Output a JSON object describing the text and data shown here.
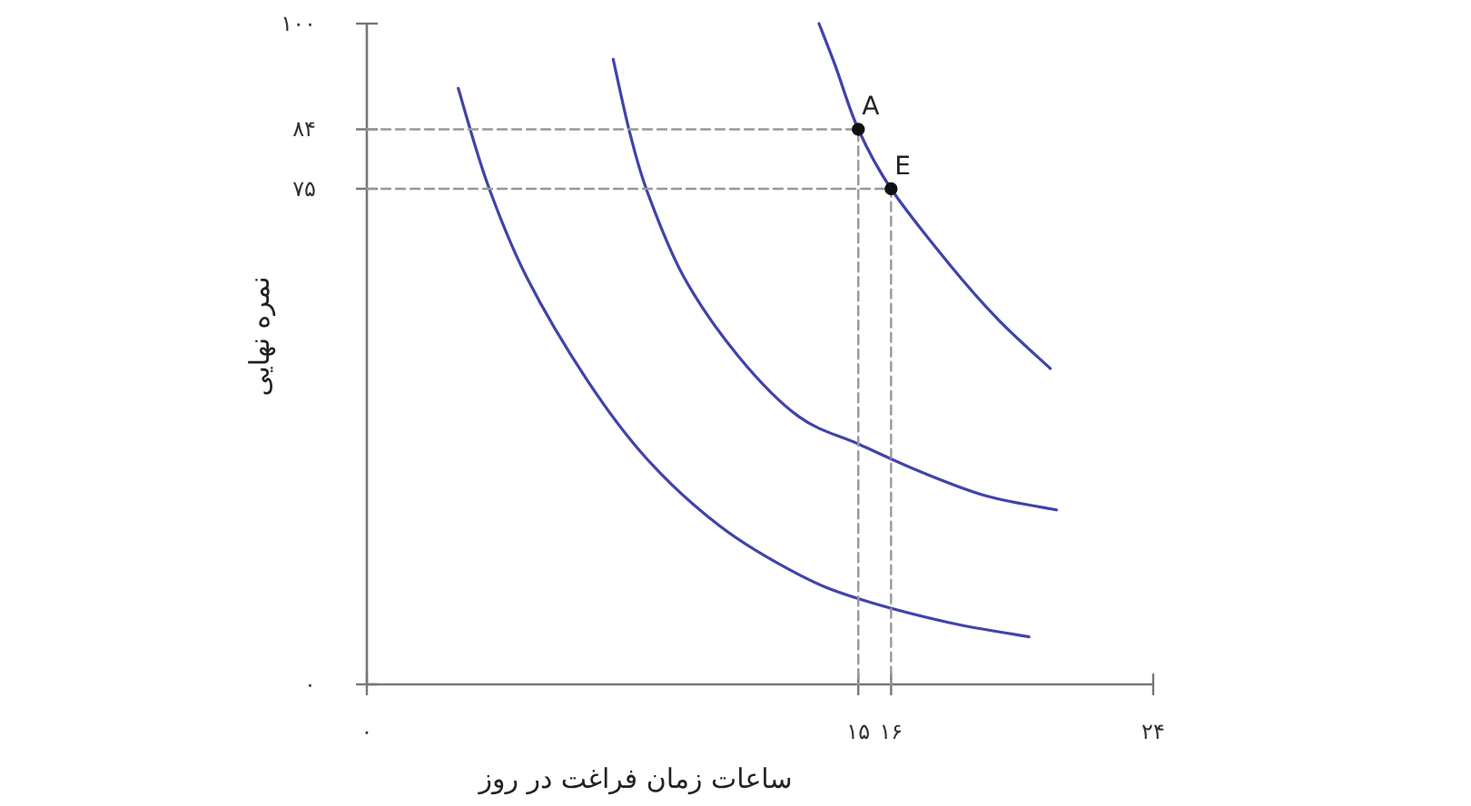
{
  "chart_data": {
    "type": "line",
    "xlabel": "ساعات زمان فراغت در روز",
    "ylabel": "نمره نهایی",
    "xlim": [
      0,
      24
    ],
    "ylim": [
      0,
      100
    ],
    "xticks": [
      {
        "value": 0,
        "label": "۰"
      },
      {
        "value": 15,
        "label": "۱۵"
      },
      {
        "value": 16,
        "label": "۱۶"
      },
      {
        "value": 24,
        "label": "۲۴"
      }
    ],
    "yticks": [
      {
        "value": 0,
        "label": "۰"
      },
      {
        "value": 75,
        "label": "۷۵"
      },
      {
        "value": 84,
        "label": "۸۴"
      },
      {
        "value": 100,
        "label": "۱۰۰"
      }
    ],
    "grid": false,
    "series": [
      {
        "color": "#4044a8",
        "marker": "none",
        "line_style": "solid",
        "x": [
          2.79,
          3.68,
          4.88,
          6.73,
          8.57,
          10.79,
          13.19,
          15.04,
          17.81,
          20.21
        ],
        "values": [
          90.2,
          75.8,
          61.6,
          46.0,
          34.0,
          23.9,
          16.6,
          12.9,
          9.3,
          7.2
        ]
      },
      {
        "color": "#4044a8",
        "marker": "none",
        "line_style": "solid",
        "x": [
          7.52,
          8.02,
          8.57,
          9.68,
          11.35,
          13.19,
          15.04,
          16.89,
          18.92,
          21.05
        ],
        "values": [
          94.6,
          83.6,
          74.4,
          61.6,
          49.6,
          40.5,
          36.3,
          32.2,
          28.5,
          26.4
        ]
      },
      {
        "color": "#4044a8",
        "marker": "none",
        "line_style": "solid",
        "x": [
          13.8,
          14.3,
          15,
          16,
          17.81,
          19.29,
          20.86
        ],
        "values": [
          100,
          93.6,
          84,
          75,
          63.4,
          55.1,
          47.8
        ]
      },
      {
        "color": "#999999",
        "marker": "none",
        "line_style": "dashed",
        "x": [
          0,
          15,
          15
        ],
        "values": [
          84,
          84,
          0
        ]
      },
      {
        "color": "#999999",
        "marker": "none",
        "line_style": "dashed",
        "x": [
          0,
          16,
          16
        ],
        "values": [
          75,
          75,
          0
        ]
      },
      {
        "type": "scatter",
        "color": "#111111",
        "marker": "circle",
        "x": [
          15,
          16
        ],
        "values": [
          84,
          75
        ]
      }
    ],
    "annotations": [
      {
        "text": "A",
        "x": 15,
        "y": 84
      },
      {
        "text": "E",
        "x": 16,
        "y": 75
      }
    ]
  }
}
